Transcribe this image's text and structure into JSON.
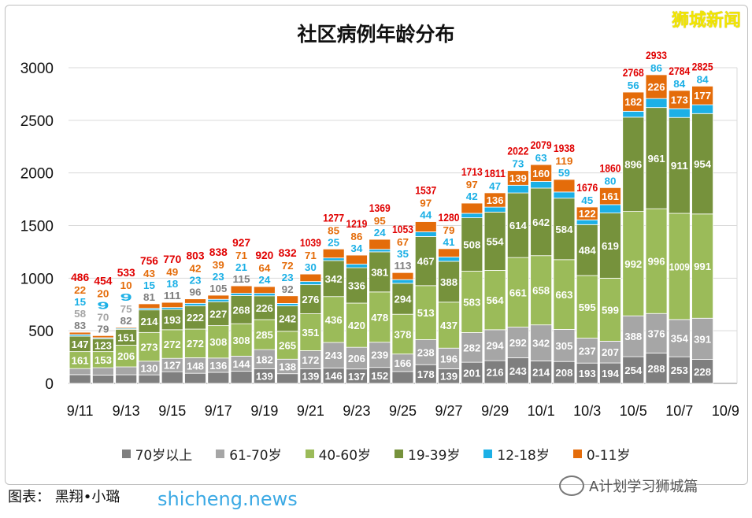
{
  "chart_data": {
    "type": "bar",
    "stacked": true,
    "title": "社区病例年龄分布",
    "ylim": [
      0,
      3000
    ],
    "yticks": [
      0,
      500,
      1000,
      1500,
      2000,
      2500,
      3000
    ],
    "grid": true,
    "legend_placement": "bottom",
    "categories": [
      "9/11",
      "9/12",
      "9/13",
      "9/14",
      "9/15",
      "9/16",
      "9/17",
      "9/18",
      "9/19",
      "9/20",
      "9/21",
      "9/22",
      "9/23",
      "9/24",
      "9/25",
      "9/26",
      "9/27",
      "9/28",
      "9/29",
      "9/30",
      "10/1",
      "10/2",
      "10/3",
      "10/4",
      "10/5",
      "10/6",
      "10/7",
      "10/8"
    ],
    "xtick_labels": [
      "9/11",
      "9/13",
      "9/15",
      "9/17",
      "9/19",
      "9/21",
      "9/23",
      "9/25",
      "9/27",
      "9/29",
      "10/1",
      "10/3",
      "10/5",
      "10/7",
      "10/9"
    ],
    "series": [
      {
        "name": "70岁以上",
        "color": "#7f7f7f",
        "values": [
          83,
          79,
          82,
          81,
          111,
          96,
          105,
          115,
          139,
          92,
          139,
          146,
          137,
          152,
          113,
          178,
          139,
          201,
          216,
          243,
          214,
          208,
          193,
          194,
          254,
          288,
          253,
          228
        ]
      },
      {
        "name": "61-70岁",
        "color": "#a6a6a6",
        "values": [
          58,
          70,
          75,
          130,
          127,
          148,
          136,
          144,
          182,
          138,
          172,
          243,
          206,
          239,
          166,
          238,
          196,
          282,
          294,
          292,
          342,
          305,
          237,
          207,
          388,
          376,
          354,
          391
        ]
      },
      {
        "name": "40-60岁",
        "color": "#9bbb59",
        "values": [
          161,
          153,
          206,
          273,
          272,
          272,
          308,
          308,
          285,
          265,
          351,
          436,
          420,
          478,
          378,
          513,
          437,
          583,
          564,
          661,
          658,
          663,
          595,
          599,
          992,
          996,
          1009,
          991
        ]
      },
      {
        "name": "19-39岁",
        "color": "#76923c",
        "values": [
          147,
          123,
          151,
          214,
          193,
          222,
          227,
          268,
          226,
          242,
          276,
          342,
          336,
          381,
          294,
          467,
          388,
          508,
          554,
          614,
          642,
          584,
          484,
          619,
          896,
          961,
          911,
          954
        ]
      },
      {
        "name": "12-18岁",
        "color": "#1cb0e6",
        "values": [
          15,
          9,
          9,
          15,
          18,
          23,
          23,
          21,
          24,
          23,
          30,
          25,
          34,
          24,
          35,
          44,
          41,
          42,
          47,
          73,
          63,
          59,
          45,
          80,
          56,
          86,
          84,
          84
        ]
      },
      {
        "name": "0-11岁",
        "color": "#e46c0a",
        "values": [
          22,
          20,
          10,
          43,
          49,
          42,
          39,
          71,
          64,
          72,
          71,
          85,
          86,
          95,
          67,
          97,
          79,
          97,
          136,
          139,
          160,
          119,
          122,
          161,
          182,
          226,
          173,
          177
        ]
      }
    ],
    "totals": [
      486,
      454,
      533,
      756,
      770,
      803,
      838,
      927,
      920,
      832,
      1039,
      1277,
      1219,
      1369,
      1053,
      1537,
      1280,
      1713,
      1811,
      2022,
      2079,
      1938,
      1676,
      1860,
      2768,
      2933,
      2784,
      2825
    ],
    "total_label_color": "#e00000"
  },
  "watermark_top": "狮城新闻",
  "credit": "图表： 黑翔•小璐",
  "watermark_site": "shicheng.news",
  "wechat_account": "A计划学习狮城篇"
}
